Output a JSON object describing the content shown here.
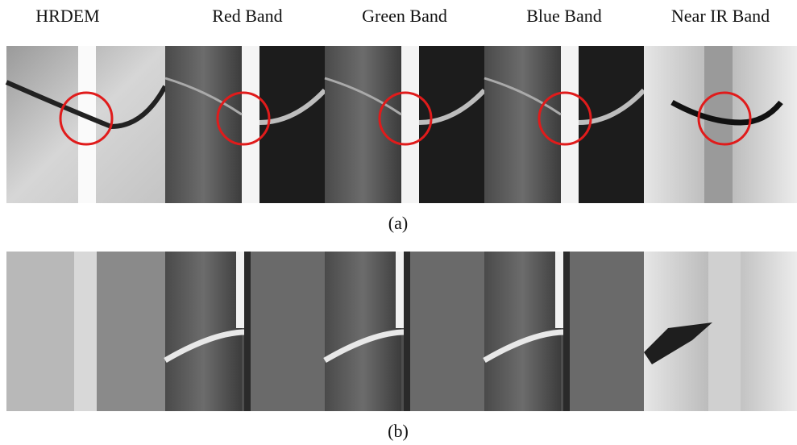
{
  "columns": [
    "HRDEM",
    "Red Band",
    "Green Band",
    "Blue Band",
    "Near IR Band"
  ],
  "captions": [
    "(a)",
    "(b)"
  ]
}
